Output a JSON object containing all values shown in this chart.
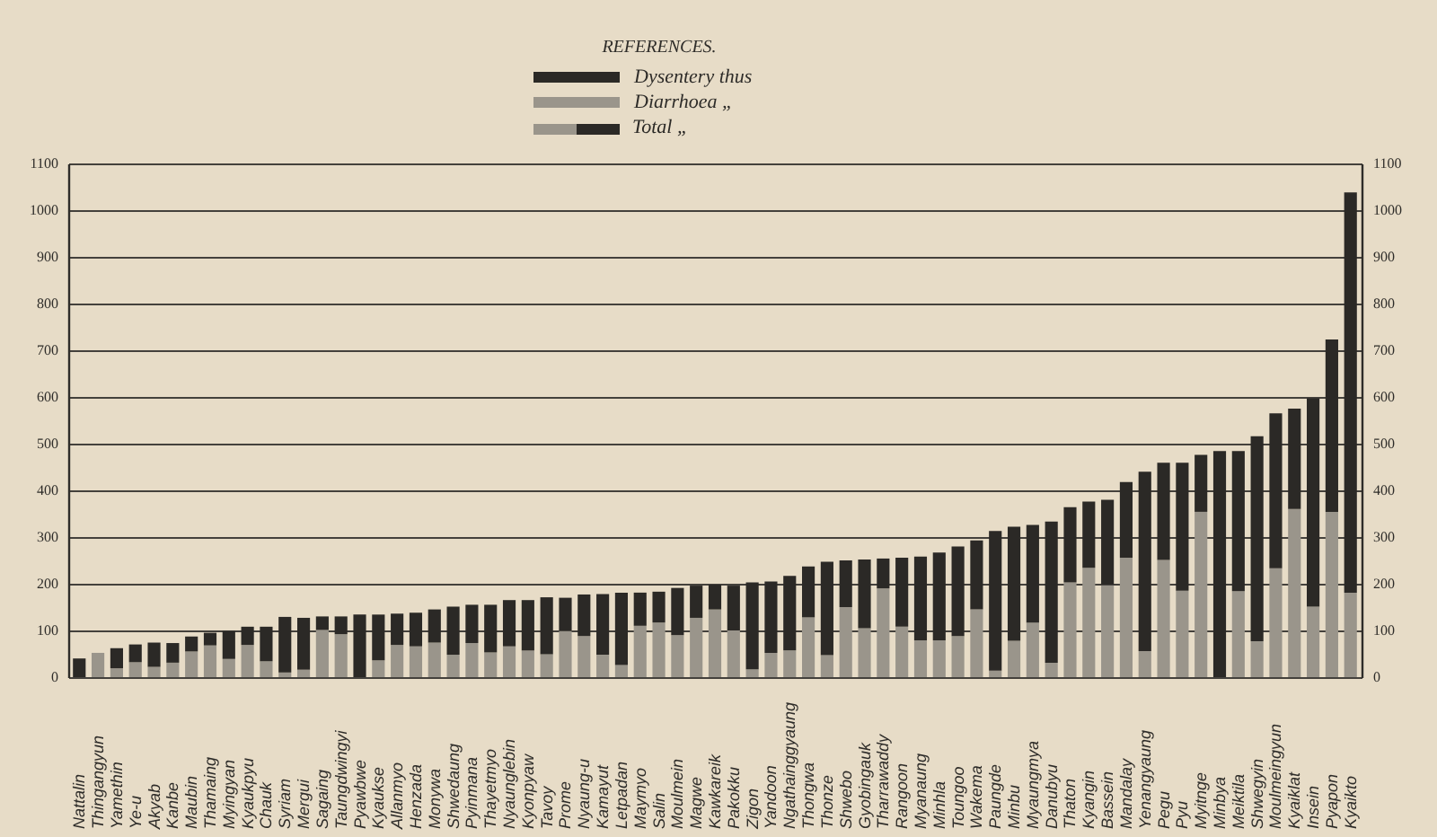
{
  "chart_data": {
    "type": "bar",
    "stacked": true,
    "legend": "top",
    "legend_title": "REFERENCES.",
    "grid": "y",
    "categories": [
      "Nattalin",
      "Thingangyun",
      "Yamethin",
      "Ye-u",
      "Akyab",
      "Kanbe",
      "Maubin",
      "Thamaing",
      "Myingyan",
      "Kyaukpyu",
      "Chauk",
      "Syriam",
      "Mergui",
      "Sagaing",
      "Taungdwingyi",
      "Pyawbwe",
      "Kyaukse",
      "Allanmyo",
      "Henzada",
      "Monywa",
      "Shwedaung",
      "Pyinmana",
      "Thayetmyo",
      "Nyaunglebin",
      "Kyonpyaw",
      "Tavoy",
      "Prome",
      "Nyaung-u",
      "Kamayut",
      "Letpadan",
      "Maymyo",
      "Salin",
      "Moulmein",
      "Magwe",
      "Kawkareik",
      "Pakokku",
      "Zigon",
      "Yandoon",
      "Ngathainggyaung",
      "Thongwa",
      "Thonze",
      "Shwebo",
      "Gyobingauk",
      "Tharrawaddy",
      "Rangoon",
      "Myanaung",
      "Minhla",
      "Toungoo",
      "Wakema",
      "Paungde",
      "Minbu",
      "Myaungmya",
      "Danubyu",
      "Thaton",
      "Kyangin",
      "Bassein",
      "Mandalay",
      "Yenangyaung",
      "Pegu",
      "Pyu",
      "Myitnge",
      "Minbya",
      "Meiktila",
      "Shwegyin",
      "Moulmeingyun",
      "Kyaiklat",
      "Insein",
      "Pyapon",
      "Kyaikto"
    ],
    "series": [
      {
        "name": "Diarrhoea „",
        "color": "#9a958b",
        "values": [
          null,
          52,
          19,
          32,
          22,
          31,
          55,
          68,
          39,
          69,
          34,
          10,
          16,
          101,
          92,
          null,
          36,
          69,
          66,
          74,
          48,
          73,
          53,
          66,
          57,
          49,
          99,
          88,
          48,
          26,
          110,
          117,
          90,
          127,
          145,
          100,
          17,
          52,
          57,
          128,
          47,
          150,
          105,
          190,
          108,
          79,
          79,
          88,
          145,
          14,
          78,
          117,
          31,
          203,
          234,
          197,
          256,
          56,
          251,
          185,
          354,
          null,
          184,
          77,
          233,
          360,
          151,
          354,
          181
        ]
      },
      {
        "name": "Dysentery thus",
        "color": "#2b2926",
        "values": [
          40,
          null,
          43,
          38,
          52,
          42,
          32,
          27,
          60,
          39,
          74,
          119,
          111,
          29,
          38,
          134,
          98,
          67,
          72,
          71,
          103,
          82,
          102,
          99,
          108,
          122,
          71,
          89,
          130,
          155,
          71,
          66,
          101,
          69,
          53,
          96,
          186,
          153,
          160,
          109,
          200,
          100,
          147,
          64,
          148,
          179,
          188,
          192,
          148,
          299,
          244,
          209,
          302,
          161,
          142,
          183,
          162,
          384,
          208,
          274,
          122,
          484,
          300,
          439,
          332,
          215,
          446,
          369,
          857
        ]
      }
    ],
    "ylim": [
      0,
      1100
    ],
    "yticks": [
      0,
      100,
      200,
      300,
      400,
      500,
      600,
      700,
      800,
      900,
      1000,
      1100
    ],
    "y2lim": [
      0,
      1100
    ],
    "y2ticks": [
      0,
      100,
      200,
      300,
      400,
      500,
      600,
      700,
      800,
      900,
      1000,
      1100
    ],
    "annotations": [
      "Total „"
    ]
  }
}
